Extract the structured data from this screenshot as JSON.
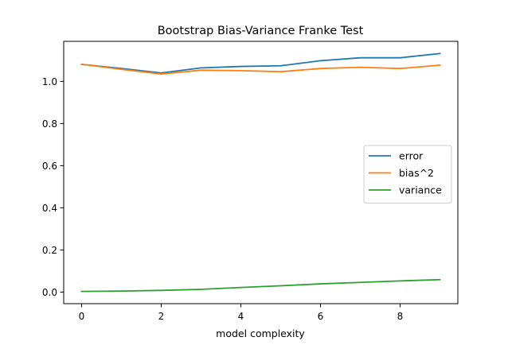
{
  "chart_data": {
    "type": "line",
    "title": "Bootstrap Bias-Variance Franke Test",
    "xlabel": "model complexity",
    "ylabel": "",
    "x": [
      0,
      1,
      2,
      3,
      4,
      5,
      6,
      7,
      8,
      9
    ],
    "xlim": [
      -0.45,
      9.45
    ],
    "ylim": [
      -0.055,
      1.19
    ],
    "x_ticks": [
      0,
      2,
      4,
      6,
      8
    ],
    "x_tick_labels": [
      "0",
      "2",
      "4",
      "6",
      "8"
    ],
    "y_ticks": [
      0.0,
      0.2,
      0.4,
      0.6,
      0.8,
      1.0
    ],
    "y_tick_labels": [
      "0.0",
      "0.2",
      "0.4",
      "0.6",
      "0.8",
      "1.0"
    ],
    "grid": false,
    "legend_position": "center-right",
    "series": [
      {
        "name": "error",
        "color": "#1f77b4",
        "values": [
          1.081,
          1.061,
          1.04,
          1.064,
          1.071,
          1.074,
          1.098,
          1.112,
          1.112,
          1.132
        ]
      },
      {
        "name": "bias^2",
        "color": "#ff7f0e",
        "values": [
          1.081,
          1.057,
          1.035,
          1.053,
          1.051,
          1.046,
          1.061,
          1.067,
          1.061,
          1.077
        ]
      },
      {
        "name": "variance",
        "color": "#2ca02c",
        "values": [
          0.003,
          0.005,
          0.008,
          0.013,
          0.022,
          0.03,
          0.039,
          0.046,
          0.053,
          0.059
        ]
      }
    ]
  }
}
